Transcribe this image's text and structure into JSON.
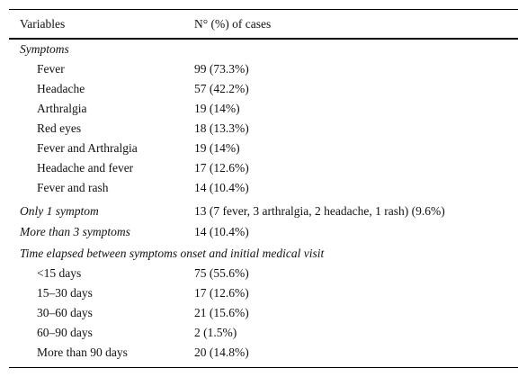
{
  "table": {
    "header": [
      "Variables",
      "N° (%) of cases"
    ],
    "sections": [
      {
        "title": "Symptoms",
        "rows": [
          [
            "Fever",
            "99 (73.3%)"
          ],
          [
            "Headache",
            "57 (42.2%)"
          ],
          [
            "Arthralgia",
            "19 (14%)"
          ],
          [
            "Red eyes",
            "18 (13.3%)"
          ],
          [
            "Fever and Arthralgia",
            "19 (14%)"
          ],
          [
            "Headache and fever",
            "17 (12.6%)"
          ],
          [
            "Fever and rash",
            "14 (10.4%)"
          ]
        ]
      },
      {
        "title": "Only 1 symptom",
        "value": "13 (7 fever, 3 arthralgia, 2 headache, 1 rash) (9.6%)"
      },
      {
        "title": "More than 3 symptoms",
        "value": "14 (10.4%)"
      },
      {
        "title": "Time elapsed between symptoms onset and initial medical visit",
        "rows": [
          [
            "<15 days",
            "75 (55.6%)"
          ],
          [
            "15–30 days",
            "17 (12.6%)"
          ],
          [
            "30–60 days",
            "21 (15.6%)"
          ],
          [
            "60–90 days",
            "2 (1.5%)"
          ],
          [
            "More than 90 days",
            "20 (14.8%)"
          ]
        ]
      }
    ]
  }
}
